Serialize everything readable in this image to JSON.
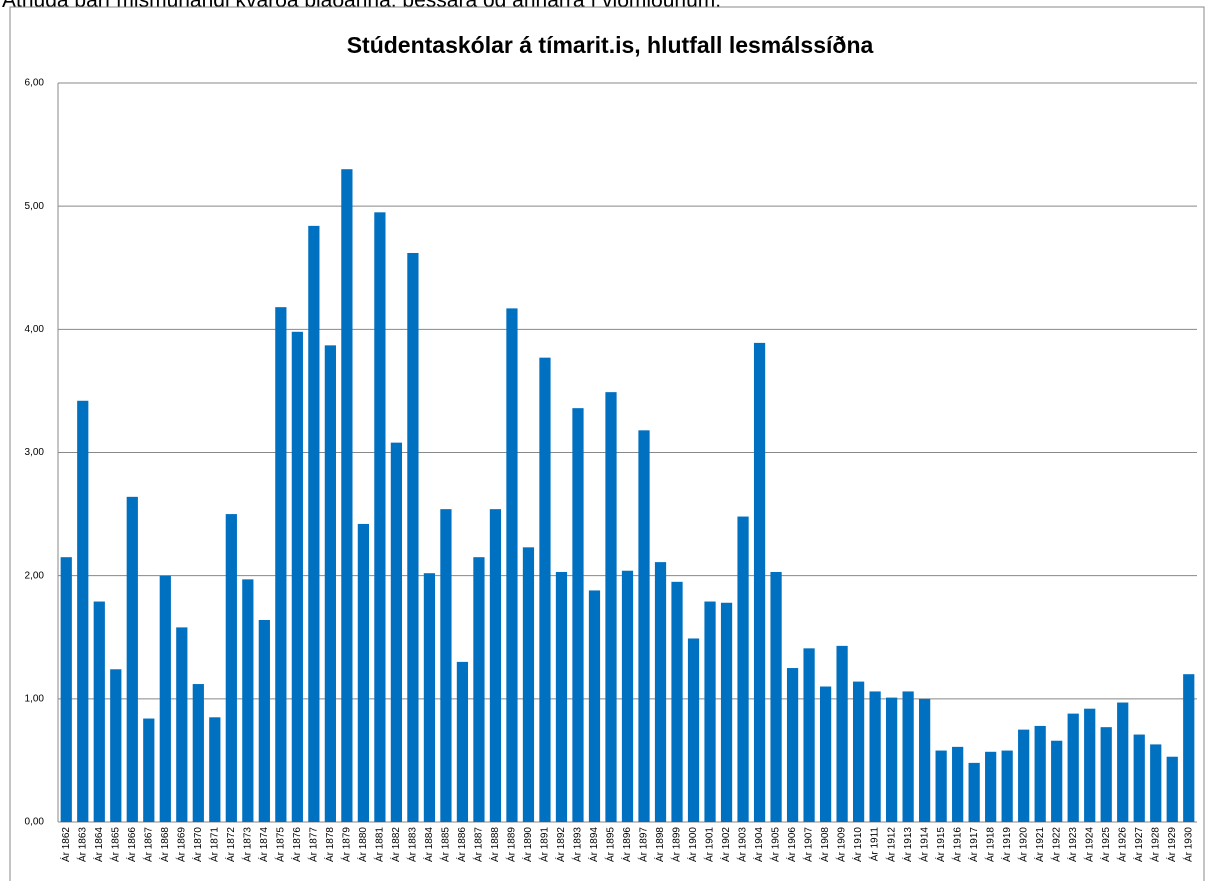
{
  "header_note": "Athuga þarf mismunandi kvarða blaðanna, þessara og annarra í viðmiðunum.",
  "chart_data": {
    "type": "bar",
    "title": "Stúdentaskólar á tímarit.is,  hlutfall lesmálssíðna",
    "categories": [
      "Ár 1862",
      "Ár 1863",
      "Ár 1864",
      "Ár 1865",
      "Ár 1866",
      "Ár 1867",
      "Ár 1868",
      "Ár 1869",
      "Ár 1870",
      "Ár 1871",
      "Ár 1872",
      "Ár 1873",
      "Ár 1874",
      "Ár 1875",
      "Ár 1876",
      "Ár 1877",
      "Ár 1878",
      "Ár 1879",
      "Ár 1880",
      "Ár 1881",
      "Ár 1882",
      "Ár 1883",
      "Ár 1884",
      "Ár 1885",
      "Ár 1886",
      "Ár 1887",
      "Ár 1888",
      "Ár 1889",
      "Ár 1890",
      "Ár 1891",
      "Ár 1892",
      "Ár 1893",
      "Ár 1894",
      "Ár 1895",
      "Ár 1896",
      "Ár 1897",
      "Ár 1898",
      "Ár 1899",
      "Ár 1900",
      "Ár 1901",
      "Ár 1902",
      "Ár 1903",
      "Ár 1904",
      "Ár 1905",
      "Ár 1906",
      "Ár 1907",
      "Ár 1908",
      "Ár 1909",
      "Ár 1910",
      "Ár 1911",
      "Ár 1912",
      "Ár 1913",
      "Ár 1914",
      "Ár 1915",
      "Ár 1916",
      "Ár 1917",
      "Ár 1918",
      "Ár 1919",
      "Ár 1920",
      "Ár 1921",
      "Ár 1922",
      "Ár 1923",
      "Ár 1924",
      "Ár 1925",
      "Ár 1926",
      "Ár 1927",
      "Ár 1928",
      "Ár 1929",
      "Ár 1930"
    ],
    "values": [
      2.15,
      3.42,
      1.79,
      1.24,
      2.64,
      0.84,
      2.0,
      1.58,
      1.12,
      0.85,
      2.5,
      1.97,
      1.64,
      4.18,
      3.98,
      4.84,
      3.87,
      5.3,
      2.42,
      4.95,
      3.08,
      4.62,
      2.02,
      2.54,
      1.3,
      2.15,
      2.54,
      4.17,
      2.23,
      3.77,
      2.03,
      3.36,
      1.88,
      3.49,
      2.04,
      3.18,
      2.11,
      1.95,
      1.49,
      1.79,
      1.78,
      2.48,
      3.89,
      2.03,
      1.25,
      1.41,
      1.1,
      1.43,
      1.14,
      1.06,
      1.01,
      1.06,
      1.0,
      0.58,
      0.61,
      0.48,
      0.57,
      0.58,
      0.75,
      0.78,
      0.66,
      0.88,
      0.92,
      0.77,
      0.97,
      0.71,
      0.63,
      0.53,
      1.2
    ],
    "color": "#0070c0",
    "ylim": [
      0,
      6
    ],
    "yticks": [
      {
        "value": 0,
        "label": "0,00"
      },
      {
        "value": 1,
        "label": "1,00"
      },
      {
        "value": 2,
        "label": "2,00"
      },
      {
        "value": 3,
        "label": "3,00"
      },
      {
        "value": 4,
        "label": "4,00"
      },
      {
        "value": 5,
        "label": "5,00"
      },
      {
        "value": 6,
        "label": "6,00"
      }
    ],
    "grid": true
  }
}
